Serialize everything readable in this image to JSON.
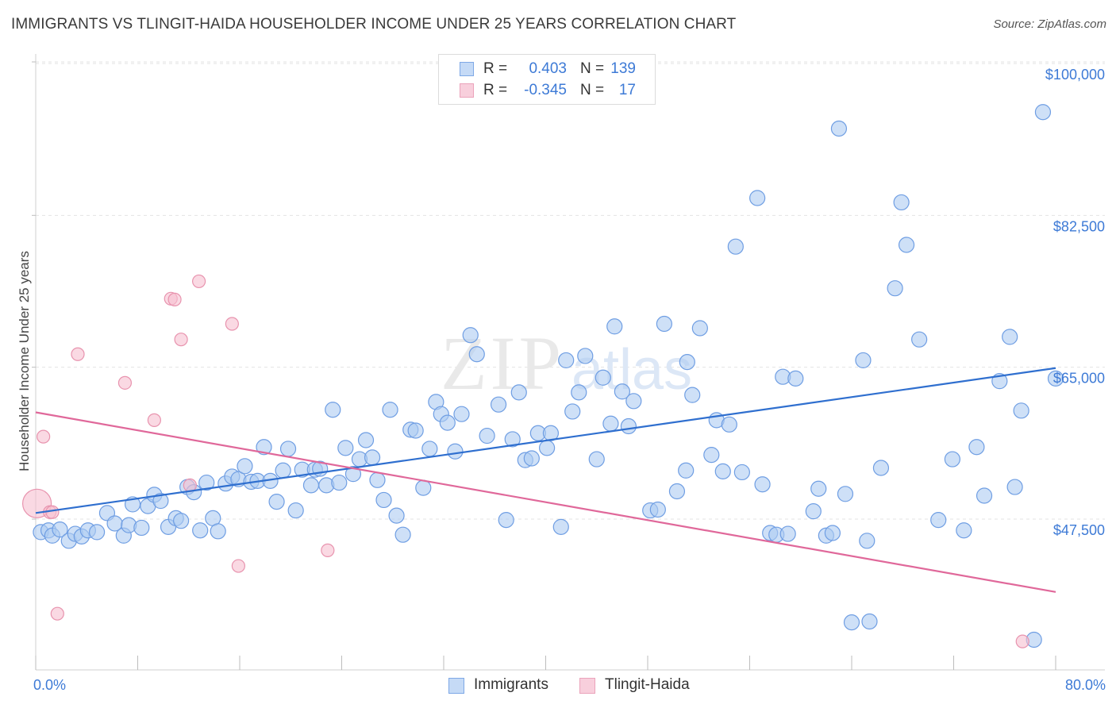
{
  "title": "IMMIGRANTS VS TLINGIT-HAIDA HOUSEHOLDER INCOME UNDER 25 YEARS CORRELATION CHART",
  "source": "Source: ZipAtlas.com",
  "watermark": {
    "zip": "ZIP",
    "atlas": "atlas"
  },
  "colors": {
    "blue_fill": "#aecbf2",
    "blue_stroke": "#6f9ee3",
    "blue_line": "#2f6fcf",
    "pink_fill": "#f6bfd0",
    "pink_stroke": "#e893ae",
    "pink_line": "#e0689a",
    "axis_text": "#3d7ad6",
    "grid": "#e3e3e3"
  },
  "legend": {
    "rows": [
      {
        "r_label": "R =",
        "r_value": "0.403",
        "n_label": "N =",
        "n_value": "139"
      },
      {
        "r_label": "R =",
        "r_value": "-0.345",
        "n_label": "N =",
        "n_value": "17"
      }
    ]
  },
  "bottom_legend": {
    "series1": "Immigrants",
    "series2": "Tlingit-Haida"
  },
  "chart_data": {
    "type": "scatter",
    "title": "IMMIGRANTS VS TLINGIT-HAIDA HOUSEHOLDER INCOME UNDER 25 YEARS CORRELATION CHART",
    "xlabel": "",
    "ylabel": "Householder Income Under 25 years",
    "xlim": [
      0,
      80
    ],
    "ylim": [
      33000,
      104000
    ],
    "x_tick_labels": [
      "0.0%",
      "80.0%"
    ],
    "y_ticks": [
      47500,
      65000,
      82500,
      100000
    ],
    "y_tick_labels": [
      "$47,500",
      "$65,000",
      "$82,500",
      "$100,000"
    ],
    "grid": "horizontal dashed",
    "legend_position": "top-center",
    "series": [
      {
        "name": "Immigrants",
        "trend": {
          "x": [
            0,
            80
          ],
          "y": [
            48200,
            64900
          ]
        },
        "points": [
          [
            0.4,
            46000
          ],
          [
            1.0,
            46200
          ],
          [
            1.3,
            45600
          ],
          [
            1.9,
            46300
          ],
          [
            2.6,
            45000
          ],
          [
            3.1,
            45800
          ],
          [
            3.6,
            45500
          ],
          [
            4.1,
            46200
          ],
          [
            4.8,
            46000
          ],
          [
            5.6,
            48200
          ],
          [
            6.2,
            47000
          ],
          [
            6.9,
            45600
          ],
          [
            7.3,
            46800
          ],
          [
            7.6,
            49200
          ],
          [
            8.3,
            46500
          ],
          [
            8.8,
            49000
          ],
          [
            9.3,
            50300
          ],
          [
            9.8,
            49600
          ],
          [
            10.4,
            46600
          ],
          [
            11.0,
            47600
          ],
          [
            11.4,
            47300
          ],
          [
            11.9,
            51200
          ],
          [
            12.4,
            50600
          ],
          [
            12.9,
            46200
          ],
          [
            13.4,
            51700
          ],
          [
            13.9,
            47600
          ],
          [
            14.3,
            46100
          ],
          [
            14.9,
            51600
          ],
          [
            15.4,
            52400
          ],
          [
            15.9,
            52100
          ],
          [
            16.4,
            53600
          ],
          [
            16.9,
            51800
          ],
          [
            17.4,
            51900
          ],
          [
            17.9,
            55800
          ],
          [
            18.4,
            51900
          ],
          [
            18.9,
            49500
          ],
          [
            19.4,
            53100
          ],
          [
            19.8,
            55600
          ],
          [
            20.4,
            48500
          ],
          [
            20.9,
            53200
          ],
          [
            21.6,
            51400
          ],
          [
            21.9,
            53200
          ],
          [
            22.3,
            53300
          ],
          [
            22.8,
            51400
          ],
          [
            23.3,
            60100
          ],
          [
            23.8,
            51700
          ],
          [
            24.3,
            55700
          ],
          [
            24.9,
            52700
          ],
          [
            25.4,
            54400
          ],
          [
            25.9,
            56600
          ],
          [
            26.4,
            54600
          ],
          [
            26.8,
            52000
          ],
          [
            27.3,
            49700
          ],
          [
            27.8,
            60100
          ],
          [
            28.3,
            47900
          ],
          [
            28.8,
            45700
          ],
          [
            29.4,
            57800
          ],
          [
            29.8,
            57700
          ],
          [
            30.4,
            51100
          ],
          [
            30.9,
            55600
          ],
          [
            31.4,
            61000
          ],
          [
            31.8,
            59600
          ],
          [
            32.3,
            58600
          ],
          [
            32.9,
            55300
          ],
          [
            33.4,
            59600
          ],
          [
            34.1,
            68700
          ],
          [
            34.6,
            66500
          ],
          [
            35.4,
            57100
          ],
          [
            36.3,
            60700
          ],
          [
            36.9,
            47400
          ],
          [
            37.4,
            56700
          ],
          [
            37.9,
            62100
          ],
          [
            38.4,
            54300
          ],
          [
            38.9,
            54500
          ],
          [
            39.4,
            57400
          ],
          [
            40.1,
            55700
          ],
          [
            40.4,
            57400
          ],
          [
            41.2,
            46600
          ],
          [
            41.6,
            65800
          ],
          [
            42.1,
            59900
          ],
          [
            42.6,
            62100
          ],
          [
            43.1,
            66300
          ],
          [
            44.0,
            54400
          ],
          [
            44.5,
            63800
          ],
          [
            45.1,
            58500
          ],
          [
            45.4,
            69700
          ],
          [
            46.0,
            62200
          ],
          [
            46.5,
            58200
          ],
          [
            46.9,
            61100
          ],
          [
            48.2,
            48500
          ],
          [
            48.8,
            48600
          ],
          [
            49.3,
            70000
          ],
          [
            50.3,
            50700
          ],
          [
            51.0,
            53100
          ],
          [
            51.1,
            65600
          ],
          [
            51.5,
            61800
          ],
          [
            52.1,
            69500
          ],
          [
            53.0,
            54900
          ],
          [
            53.4,
            58900
          ],
          [
            53.9,
            53000
          ],
          [
            54.4,
            58400
          ],
          [
            54.9,
            78900
          ],
          [
            55.4,
            52900
          ],
          [
            56.6,
            84500
          ],
          [
            57.0,
            51500
          ],
          [
            57.6,
            45900
          ],
          [
            58.1,
            45700
          ],
          [
            58.6,
            63900
          ],
          [
            59.0,
            45800
          ],
          [
            59.6,
            63700
          ],
          [
            61.0,
            48400
          ],
          [
            61.4,
            51000
          ],
          [
            62.0,
            45600
          ],
          [
            62.5,
            45900
          ],
          [
            63.0,
            92500
          ],
          [
            63.5,
            50400
          ],
          [
            64.0,
            35600
          ],
          [
            64.9,
            65800
          ],
          [
            65.2,
            45000
          ],
          [
            65.4,
            35700
          ],
          [
            66.3,
            53400
          ],
          [
            67.4,
            74100
          ],
          [
            67.9,
            84000
          ],
          [
            68.3,
            79100
          ],
          [
            69.3,
            68200
          ],
          [
            70.8,
            47400
          ],
          [
            71.9,
            54400
          ],
          [
            72.8,
            46200
          ],
          [
            73.8,
            55800
          ],
          [
            74.4,
            50200
          ],
          [
            75.6,
            63400
          ],
          [
            76.4,
            68500
          ],
          [
            76.8,
            51200
          ],
          [
            77.3,
            60000
          ],
          [
            78.3,
            33600
          ],
          [
            80.0,
            63700
          ],
          [
            79.0,
            94400
          ]
        ]
      },
      {
        "name": "Tlingit-Haida",
        "trend": {
          "x": [
            0,
            80
          ],
          "y": [
            59800,
            39100
          ]
        },
        "points": [
          [
            0.1,
            49300
          ],
          [
            0.6,
            57000
          ],
          [
            1.1,
            48300
          ],
          [
            1.3,
            48300
          ],
          [
            1.7,
            36600
          ],
          [
            3.3,
            66500
          ],
          [
            7.0,
            63200
          ],
          [
            9.3,
            58900
          ],
          [
            10.6,
            72900
          ],
          [
            10.9,
            72800
          ],
          [
            11.4,
            68200
          ],
          [
            12.1,
            51400
          ],
          [
            12.8,
            74900
          ],
          [
            15.4,
            70000
          ],
          [
            15.9,
            42100
          ],
          [
            22.9,
            43900
          ],
          [
            77.4,
            33400
          ]
        ]
      }
    ]
  }
}
